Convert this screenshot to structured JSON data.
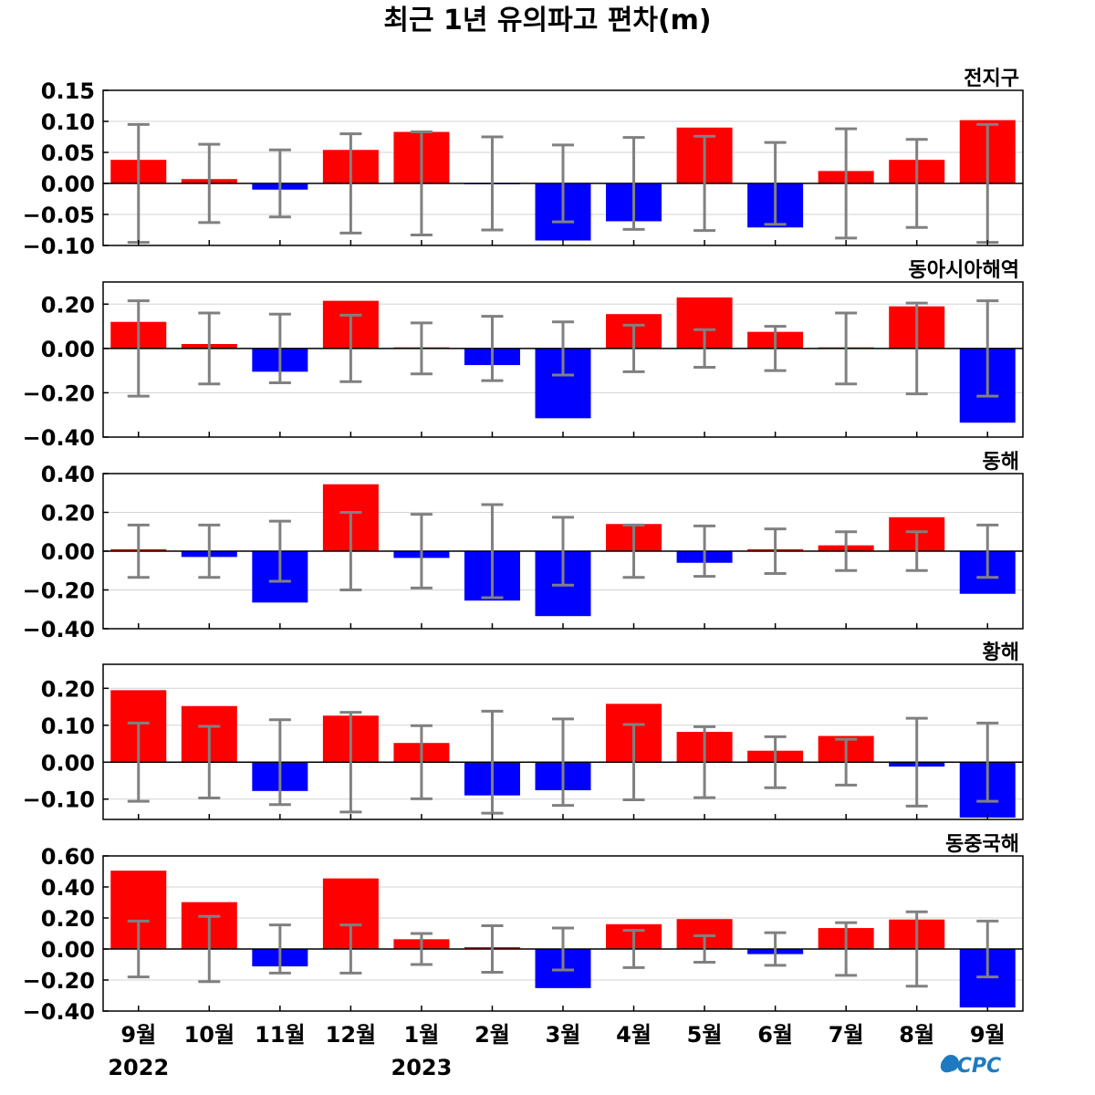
{
  "title": "최근 1년 유의파고 편차(m)",
  "logo_text": "OCPC",
  "colors": {
    "positive": "#ff0000",
    "negative": "#0000ff",
    "errorbar": "#808080",
    "grid": "#d3d3d3",
    "logo": "#1e7ac0"
  },
  "months": [
    "9월",
    "10월",
    "11월",
    "12월",
    "1월",
    "2월",
    "3월",
    "4월",
    "5월",
    "6월",
    "7월",
    "8월",
    "9월"
  ],
  "years": [
    {
      "label": "2022",
      "month_index": 0
    },
    {
      "label": "2023",
      "month_index": 4
    }
  ],
  "chart_data": [
    {
      "type": "bar",
      "title": "전지구",
      "categories": [
        "9월",
        "10월",
        "11월",
        "12월",
        "1월",
        "2월",
        "3월",
        "4월",
        "5월",
        "6월",
        "7월",
        "8월",
        "9월"
      ],
      "values": [
        0.038,
        0.007,
        -0.01,
        0.054,
        0.083,
        -0.001,
        -0.092,
        -0.061,
        0.09,
        -0.071,
        0.02,
        0.038,
        0.102
      ],
      "error": [
        0.095,
        0.063,
        0.054,
        0.08,
        0.083,
        0.075,
        0.062,
        0.074,
        0.076,
        0.066,
        0.088,
        0.071,
        0.095
      ],
      "ylim": [
        -0.1,
        0.15
      ],
      "yticks": [
        -0.1,
        -0.05,
        0.0,
        0.05,
        0.1,
        0.15
      ],
      "ytick_labels": [
        "−0.10",
        "−0.05",
        "0.00",
        "0.05",
        "0.10",
        "0.15"
      ],
      "grid": true
    },
    {
      "type": "bar",
      "title": "동아시아해역",
      "categories": [
        "9월",
        "10월",
        "11월",
        "12월",
        "1월",
        "2월",
        "3월",
        "4월",
        "5월",
        "6월",
        "7월",
        "8월",
        "9월"
      ],
      "values": [
        0.12,
        0.02,
        -0.105,
        0.215,
        0.005,
        -0.075,
        -0.315,
        0.155,
        0.23,
        0.075,
        0.005,
        0.19,
        -0.335
      ],
      "error": [
        0.215,
        0.16,
        0.155,
        0.15,
        0.115,
        0.145,
        0.12,
        0.105,
        0.085,
        0.1,
        0.16,
        0.205,
        0.215
      ],
      "ylim": [
        -0.4,
        0.3
      ],
      "yticks": [
        -0.4,
        -0.2,
        0.0,
        0.2
      ],
      "ytick_labels": [
        "−0.40",
        "−0.20",
        "0.00",
        "0.20"
      ],
      "grid": true
    },
    {
      "type": "bar",
      "title": "동해",
      "categories": [
        "9월",
        "10월",
        "11월",
        "12월",
        "1월",
        "2월",
        "3월",
        "4월",
        "5월",
        "6월",
        "7월",
        "8월",
        "9월"
      ],
      "values": [
        0.01,
        -0.03,
        -0.265,
        0.345,
        -0.035,
        -0.255,
        -0.335,
        0.14,
        -0.06,
        0.01,
        0.03,
        0.175,
        -0.22
      ],
      "error": [
        0.135,
        0.135,
        0.155,
        0.2,
        0.19,
        0.24,
        0.175,
        0.135,
        0.13,
        0.115,
        0.1,
        0.1,
        0.135
      ],
      "ylim": [
        -0.4,
        0.4
      ],
      "yticks": [
        -0.4,
        -0.2,
        0.0,
        0.2,
        0.4
      ],
      "ytick_labels": [
        "−0.40",
        "−0.20",
        "0.00",
        "0.20",
        "0.40"
      ],
      "grid": true
    },
    {
      "type": "bar",
      "title": "황해",
      "categories": [
        "9월",
        "10월",
        "11월",
        "12월",
        "1월",
        "2월",
        "3월",
        "4월",
        "5월",
        "6월",
        "7월",
        "8월",
        "9월"
      ],
      "values": [
        0.195,
        0.152,
        -0.078,
        0.126,
        0.052,
        -0.09,
        -0.076,
        0.158,
        0.082,
        0.031,
        0.071,
        -0.012,
        -0.15
      ],
      "error": [
        0.106,
        0.097,
        0.115,
        0.135,
        0.099,
        0.138,
        0.117,
        0.102,
        0.096,
        0.069,
        0.062,
        0.119,
        0.106
      ],
      "ylim": [
        -0.155,
        0.265
      ],
      "yticks": [
        -0.1,
        0.0,
        0.1,
        0.2
      ],
      "ytick_labels": [
        "−0.10",
        "0.00",
        "0.10",
        "0.20"
      ],
      "grid": true
    },
    {
      "type": "bar",
      "title": "동중국해",
      "categories": [
        "9월",
        "10월",
        "11월",
        "12월",
        "1월",
        "2월",
        "3월",
        "4월",
        "5월",
        "6월",
        "7월",
        "8월",
        "9월"
      ],
      "values": [
        0.505,
        0.302,
        -0.112,
        0.455,
        0.063,
        0.012,
        -0.252,
        0.16,
        0.193,
        -0.033,
        0.135,
        0.19,
        -0.377
      ],
      "error": [
        0.18,
        0.21,
        0.155,
        0.155,
        0.1,
        0.15,
        0.135,
        0.12,
        0.085,
        0.105,
        0.17,
        0.24,
        0.18
      ],
      "ylim": [
        -0.4,
        0.6
      ],
      "yticks": [
        -0.4,
        -0.2,
        0.0,
        0.2,
        0.4,
        0.6
      ],
      "ytick_labels": [
        "−0.40",
        "−0.20",
        "0.00",
        "0.20",
        "0.40",
        "0.60"
      ],
      "grid": true
    }
  ]
}
